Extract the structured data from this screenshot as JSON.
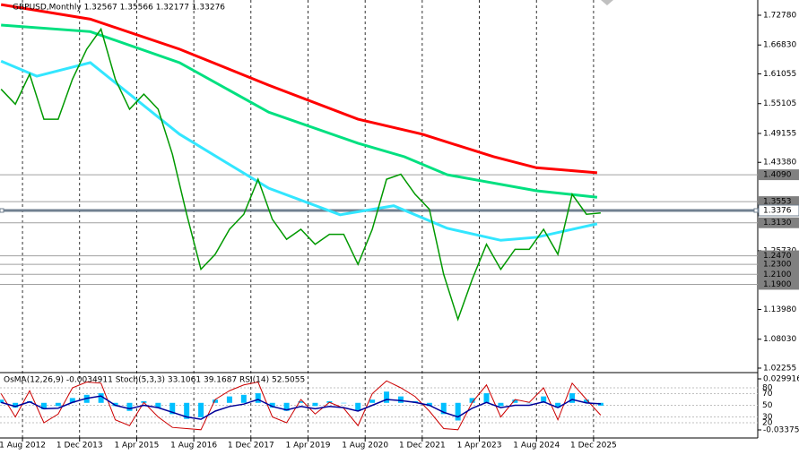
{
  "header": "GBPUSD,Monthly 1.32567 1.35566 1.32177 1.33276",
  "chart_data": {
    "type": "line",
    "x": [
      -6,
      -2,
      2,
      6,
      10,
      14,
      18,
      22,
      26,
      30,
      34,
      38,
      42,
      46,
      50,
      54,
      58,
      62,
      66,
      70,
      74,
      78,
      82,
      86,
      90,
      94,
      98,
      102,
      106,
      110,
      114,
      118,
      122,
      126,
      130,
      134,
      138,
      142,
      146,
      150,
      154,
      158,
      162
    ],
    "values": [
      1.58,
      1.55,
      1.61,
      1.52,
      1.52,
      1.6,
      1.66,
      1.7,
      1.6,
      1.54,
      1.57,
      1.54,
      1.45,
      1.33,
      1.22,
      1.25,
      1.3,
      1.33,
      1.4,
      1.32,
      1.28,
      1.3,
      1.27,
      1.29,
      1.29,
      1.23,
      1.3,
      1.4,
      1.41,
      1.37,
      1.34,
      1.21,
      1.12,
      1.2,
      1.27,
      1.22,
      1.26,
      1.26,
      1.3,
      1.25,
      1.37,
      1.33,
      1.33276
    ],
    "color": "#009900",
    "moving_averages": [
      {
        "color": "#ff0000",
        "x": [
          -6,
          19,
          44,
          69,
          94,
          112,
          132,
          144,
          161
        ],
        "values": [
          1.749,
          1.72,
          1.66,
          1.588,
          1.52,
          1.49,
          1.445,
          1.423,
          1.413
        ]
      },
      {
        "color": "#00e080",
        "x": [
          -6,
          19,
          44,
          69,
          94,
          107,
          119,
          144,
          161
        ],
        "values": [
          1.708,
          1.695,
          1.633,
          1.534,
          1.472,
          1.445,
          1.409,
          1.377,
          1.364
        ]
      },
      {
        "color": "#33e6ff",
        "x": [
          -6,
          4,
          19,
          44,
          69,
          89,
          104,
          119,
          134,
          144,
          161
        ],
        "values": [
          1.636,
          1.606,
          1.633,
          1.49,
          1.382,
          1.329,
          1.347,
          1.302,
          1.278,
          1.284,
          1.311
        ]
      }
    ],
    "levels": [
      {
        "value": 1.409,
        "label": "1.4090"
      },
      {
        "value": 1.3553,
        "label": "1.3553"
      },
      {
        "value": 1.3376,
        "label": "1.3376",
        "highlight": true
      },
      {
        "value": 1.313,
        "label": "1.3130"
      },
      {
        "value": 1.247,
        "label": "1.2470"
      },
      {
        "value": 1.23,
        "label": "1.2300"
      },
      {
        "value": 1.21,
        "label": "1.2100"
      },
      {
        "value": 1.19,
        "label": "1.1900"
      }
    ],
    "xlim": [
      -6.3,
      206
    ],
    "xticks": [
      {
        "value": 0,
        "label": "1 Aug 2012"
      },
      {
        "value": 16,
        "label": "1 Dec 2013"
      },
      {
        "value": 32,
        "label": "1 Apr 2015"
      },
      {
        "value": 48,
        "label": "1 Aug 2016"
      },
      {
        "value": 64,
        "label": "1 Dec 2017"
      },
      {
        "value": 80,
        "label": "1 Apr 2019"
      },
      {
        "value": 96,
        "label": "1 Aug 2020"
      },
      {
        "value": 112,
        "label": "1 Dec 2021"
      },
      {
        "value": 128,
        "label": "1 Apr 2023"
      },
      {
        "value": 144,
        "label": "1 Aug 2024"
      },
      {
        "value": 160,
        "label": "1 Dec 2025"
      }
    ],
    "ylim": [
      1.0154,
      1.7582
    ],
    "yticks": [
      {
        "value": 1.7278,
        "label": "1.72780"
      },
      {
        "value": 1.6683,
        "label": "1.66830"
      },
      {
        "value": 1.61055,
        "label": "1.61055"
      },
      {
        "value": 1.55105,
        "label": "1.55105"
      },
      {
        "value": 1.49155,
        "label": "1.49155"
      },
      {
        "value": 1.4338,
        "label": "1.43380"
      },
      {
        "value": 1.2573,
        "label": "1.25730"
      },
      {
        "value": 1.1398,
        "label": "1.13980"
      },
      {
        "value": 1.0803,
        "label": "1.08030"
      },
      {
        "value": 1.02255,
        "label": "1.02255"
      }
    ],
    "grid": true
  },
  "oscillator": {
    "header": "OsMA(12,26,9) -0.0034911 Stoch(5,3,3) 33.1061 39.1687 RSI(14) 52.5055",
    "osma": {
      "color": "#00bfff",
      "ylim": [
        -0.033754,
        0.029916
      ],
      "yticks": [
        0.029916,
        -0.033754
      ],
      "values": [
        0.004,
        -0.006,
        0.002,
        -0.008,
        -0.004,
        0.006,
        0.01,
        0.012,
        -0.004,
        -0.01,
        0.002,
        -0.006,
        -0.014,
        -0.02,
        -0.018,
        0.004,
        0.008,
        0.01,
        0.012,
        -0.006,
        -0.01,
        0.002,
        -0.004,
        0.002,
        0,
        -0.01,
        0.004,
        0.014,
        0.008,
        0.002,
        -0.004,
        -0.014,
        -0.022,
        0.006,
        0.012,
        -0.004,
        0.004,
        0,
        0.008,
        -0.006,
        0.012,
        0.004,
        -0.0034911
      ]
    },
    "ylim": [
      0,
      100
    ],
    "yticks": [
      80,
      70,
      50,
      30,
      20
    ],
    "rsi": {
      "color": "#000099",
      "values": [
        55,
        48,
        56,
        44,
        45,
        55,
        62,
        66,
        50,
        44,
        50,
        46,
        38,
        30,
        26,
        40,
        48,
        52,
        60,
        48,
        42,
        48,
        44,
        48,
        46,
        40,
        50,
        60,
        58,
        55,
        50,
        38,
        30,
        45,
        55,
        46,
        50,
        50,
        56,
        46,
        60,
        54,
        52.5055
      ]
    },
    "stoch": {
      "color": "#cc0000",
      "values": [
        70,
        30,
        75,
        20,
        35,
        80,
        90,
        88,
        25,
        15,
        55,
        30,
        12,
        10,
        8,
        60,
        75,
        85,
        90,
        30,
        20,
        60,
        35,
        55,
        45,
        15,
        70,
        92,
        80,
        65,
        40,
        10,
        8,
        55,
        85,
        30,
        60,
        55,
        80,
        25,
        88,
        60,
        33.1061
      ]
    }
  }
}
